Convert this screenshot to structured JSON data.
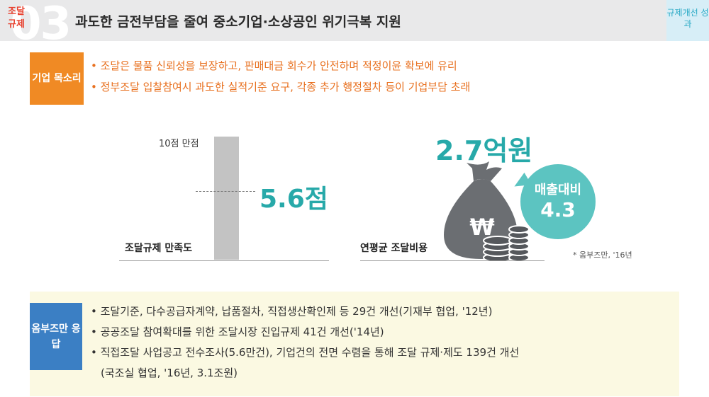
{
  "header": {
    "big_number": "03",
    "category": "조달 규제",
    "title": "과도한 금전부담을 줄여 중소기업·소상공인 위기극복 지원",
    "corner_label": "규제개선 성과"
  },
  "voice": {
    "tag": "기업 목소리",
    "items": [
      "조달은 물품 신뢰성을 보장하고, 판매대금 회수가 안전하며 적정이윤 확보에 유리",
      "정부조달 입찰참여시 과도한 실적기준 요구, 각종 추가 행정절차 등이 기업부담 초래"
    ]
  },
  "chart_data": {
    "type": "bar",
    "categories": [
      "조달규제 만족도"
    ],
    "values": [
      5.6
    ],
    "max_label": "10점 만점",
    "value_label": "5.6점",
    "ylim": [
      0,
      10
    ]
  },
  "cost": {
    "label": "연평균 조달비용",
    "value": "2.7억원",
    "bubble_title": "매출대비",
    "bubble_value": "4.3",
    "note": "* 옴부즈만, '16년"
  },
  "answer": {
    "tag": "옴부즈만 응답",
    "items": [
      "조달기준, 다수공급자계약, 납품절차, 직접생산확인제 등 29건 개선(기재부 협업, '12년)",
      "공공조달 참여확대를 위한 조달시장 진입규제 41건 개선('14년)",
      "직접조달 사업공고 전수조사(5.6만건), 기업건의 전면 수렴을 통해 조달 규제·제도 139건 개선"
    ],
    "continuation": "(국조실 협업, '16년, 3.1조원)"
  },
  "colors": {
    "orange": "#f08a24",
    "teal": "#27a9a9",
    "blue": "#3b7fc4",
    "red": "#e8412e"
  }
}
